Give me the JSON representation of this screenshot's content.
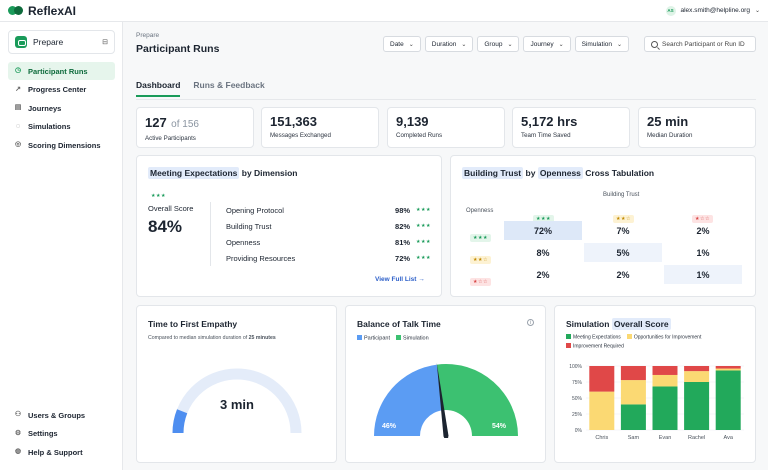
{
  "app": {
    "name": "ReflexAI"
  },
  "user": {
    "initials": "AS",
    "email": "alex.smith@helpline.org"
  },
  "sidebar": {
    "workspace": "Prepare",
    "items": [
      {
        "label": "Participant Runs",
        "icon": "clock-icon",
        "active": true
      },
      {
        "label": "Progress Center",
        "icon": "chart-icon"
      },
      {
        "label": "Journeys",
        "icon": "map-icon"
      },
      {
        "label": "Simulations",
        "icon": "chat-icon"
      },
      {
        "label": "Scoring Dimensions",
        "icon": "target-icon"
      }
    ],
    "bottom_items": [
      {
        "label": "Users & Groups",
        "icon": "users-icon"
      },
      {
        "label": "Settings",
        "icon": "gear-icon"
      },
      {
        "label": "Help & Support",
        "icon": "help-icon"
      }
    ]
  },
  "header": {
    "breadcrumb": "Prepare",
    "title": "Participant Runs",
    "filters": [
      "Date",
      "Duration",
      "Group",
      "Journey",
      "Simulation"
    ],
    "search_placeholder": "Search Participant or Run ID"
  },
  "tabs": [
    {
      "label": "Dashboard",
      "active": true
    },
    {
      "label": "Runs & Feedback"
    }
  ],
  "stats": [
    {
      "value": "127",
      "of": "of 156",
      "label": "Active Participants"
    },
    {
      "value": "151,363",
      "label": "Messages Exchanged"
    },
    {
      "value": "9,139",
      "label": "Completed Runs"
    },
    {
      "value": "5,172 hrs",
      "label": "Team Time Saved"
    },
    {
      "value": "25 min",
      "label": "Median Duration"
    }
  ],
  "meeting": {
    "title_hl": "Meeting Expectations",
    "title_rest": "by Dimension",
    "overall_label": "Overall Score",
    "overall_value": "84%",
    "rows": [
      {
        "name": "Opening Protocol",
        "pct": "98%"
      },
      {
        "name": "Building Trust",
        "pct": "82%"
      },
      {
        "name": "Openness",
        "pct": "81%"
      },
      {
        "name": "Providing Resources",
        "pct": "72%"
      }
    ],
    "link": "View Full List"
  },
  "crosstab": {
    "title_hl1": "Building Trust",
    "title_by": "by",
    "title_hl2": "Openness",
    "title_rest": "Cross Tabulation",
    "col_header": "Building Trust",
    "row_header": "Openness",
    "rows": [
      [
        "72%",
        "7%",
        "2%"
      ],
      [
        "8%",
        "5%",
        "1%"
      ],
      [
        "2%",
        "2%",
        "1%"
      ]
    ]
  },
  "empathy": {
    "title": "Time to First Empathy",
    "subtitle_pre": "Compared to median simulation duration of",
    "subtitle_bold": "25 minutes",
    "value": "3 min",
    "fraction": 0.12
  },
  "talk": {
    "title": "Balance of Talk Time",
    "legend": [
      "Participant",
      "Simulation"
    ],
    "participant_pct": "46%",
    "simulation_pct": "54%",
    "participant_share": 0.46
  },
  "chart_data": {
    "type": "bar",
    "stacked": true,
    "title": "Simulation Overall Score",
    "categories": [
      "Chris",
      "Sam",
      "Evan",
      "Rachel",
      "Ava"
    ],
    "series": [
      {
        "name": "Meeting Expectations",
        "color": "#22a95b",
        "values": [
          0,
          40,
          68,
          75,
          93
        ]
      },
      {
        "name": "Opportunities for Improvement",
        "color": "#fbd973",
        "values": [
          60,
          38,
          18,
          17,
          3
        ]
      },
      {
        "name": "Improvement Required",
        "color": "#e04848",
        "values": [
          40,
          22,
          14,
          8,
          4
        ]
      }
    ],
    "yticks": [
      "0%",
      "25%",
      "50%",
      "75%",
      "100%"
    ],
    "ylim": [
      0,
      100
    ]
  },
  "colors": {
    "accent": "#1a9b5a",
    "blue": "#5b9cf3",
    "green": "#3cc171"
  }
}
